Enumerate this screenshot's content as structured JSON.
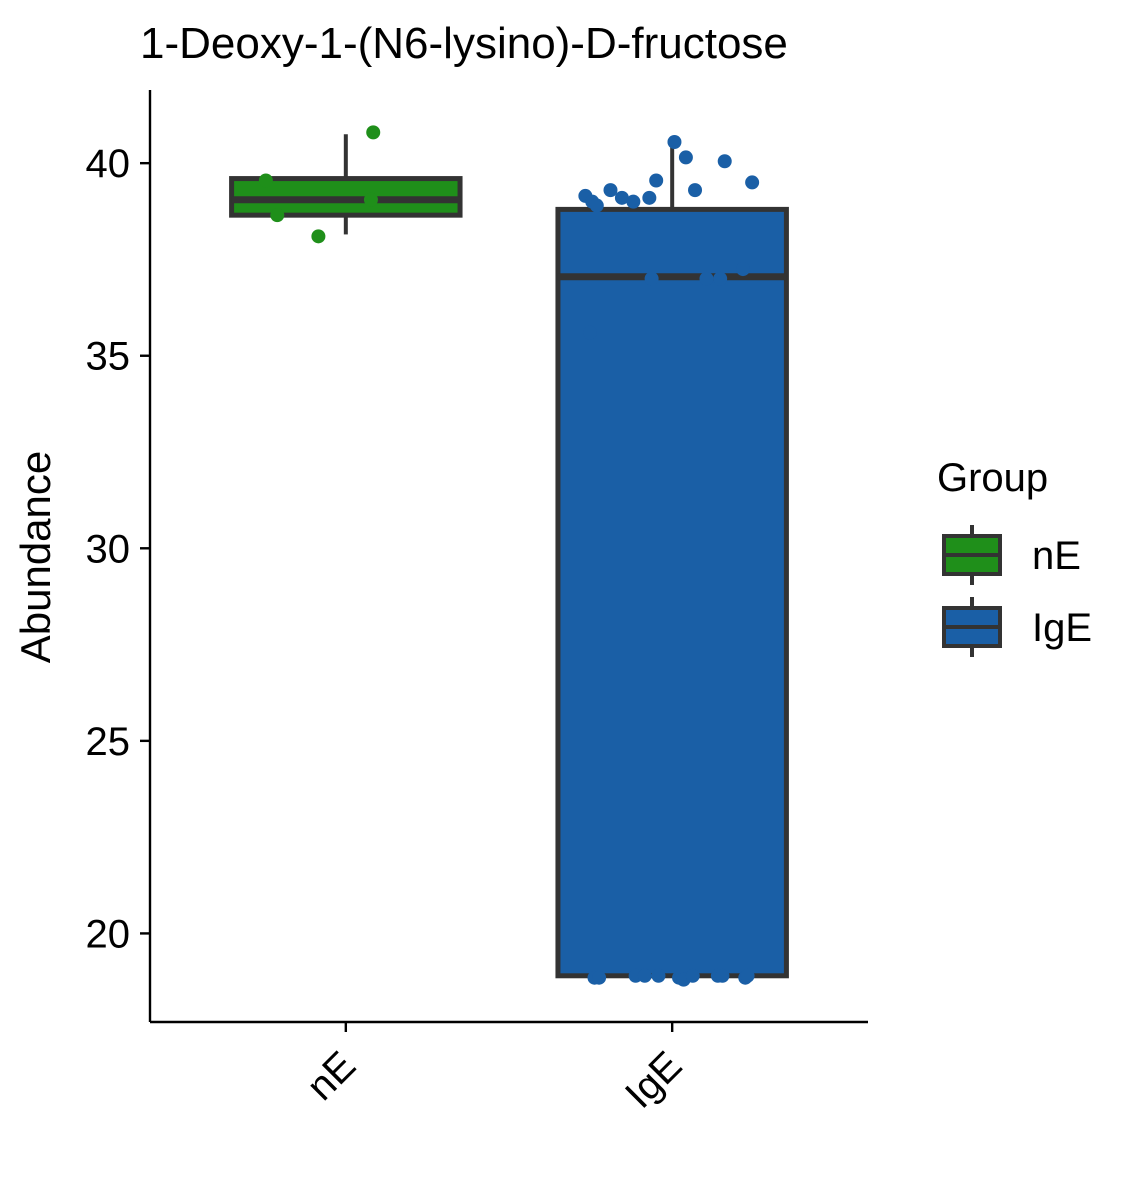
{
  "chart_data": {
    "type": "boxplot",
    "title": "1-Deoxy-1-(N6-lysino)-D-fructose",
    "xlabel": "",
    "ylabel": "Abundance",
    "ylim": [
      17.7,
      41.9
    ],
    "yticks": [
      20,
      25,
      30,
      35,
      40
    ],
    "categories": [
      "nE",
      "IgE"
    ],
    "legend": {
      "title": "Group",
      "position": "right",
      "entries": [
        "nE",
        "IgE"
      ]
    },
    "grid": false,
    "series": [
      {
        "name": "nE",
        "color": "#1f8f1a",
        "box": {
          "whisker_low": 38.15,
          "q1": 38.65,
          "median": 39.05,
          "q3": 39.6,
          "whisker_high": 40.75
        },
        "points": [
          {
            "x": -0.35,
            "y": 39.55
          },
          {
            "x": -0.3,
            "y": 38.65
          },
          {
            "x": -0.12,
            "y": 38.1
          },
          {
            "x": 0.11,
            "y": 39.05
          },
          {
            "x": 0.12,
            "y": 40.8
          }
        ]
      },
      {
        "name": "IgE",
        "color": "#1a5fa6",
        "box": {
          "whisker_low": 18.9,
          "q1": 18.9,
          "median": 37.05,
          "q3": 38.8,
          "whisker_high": 40.45
        },
        "points": [
          {
            "x": -0.38,
            "y": 39.15
          },
          {
            "x": -0.35,
            "y": 39.0
          },
          {
            "x": -0.33,
            "y": 38.9
          },
          {
            "x": -0.27,
            "y": 39.3
          },
          {
            "x": -0.22,
            "y": 39.1
          },
          {
            "x": -0.17,
            "y": 39.0
          },
          {
            "x": -0.1,
            "y": 39.1
          },
          {
            "x": -0.07,
            "y": 39.55
          },
          {
            "x": 0.01,
            "y": 40.55
          },
          {
            "x": 0.06,
            "y": 40.15
          },
          {
            "x": 0.1,
            "y": 39.3
          },
          {
            "x": 0.23,
            "y": 40.05
          },
          {
            "x": 0.35,
            "y": 39.5
          },
          {
            "x": -0.36,
            "y": 35.6
          },
          {
            "x": -0.09,
            "y": 37.0
          },
          {
            "x": 0.15,
            "y": 37.0
          },
          {
            "x": 0.21,
            "y": 37.0
          },
          {
            "x": 0.31,
            "y": 37.25
          },
          {
            "x": -0.34,
            "y": 18.85
          },
          {
            "x": -0.32,
            "y": 18.85
          },
          {
            "x": -0.16,
            "y": 18.9
          },
          {
            "x": -0.12,
            "y": 18.9
          },
          {
            "x": -0.06,
            "y": 18.9
          },
          {
            "x": 0.03,
            "y": 18.85
          },
          {
            "x": 0.05,
            "y": 18.8
          },
          {
            "x": 0.09,
            "y": 18.9
          },
          {
            "x": 0.2,
            "y": 18.9
          },
          {
            "x": 0.22,
            "y": 18.9
          },
          {
            "x": 0.32,
            "y": 18.85
          },
          {
            "x": 0.33,
            "y": 18.9
          }
        ]
      }
    ]
  }
}
